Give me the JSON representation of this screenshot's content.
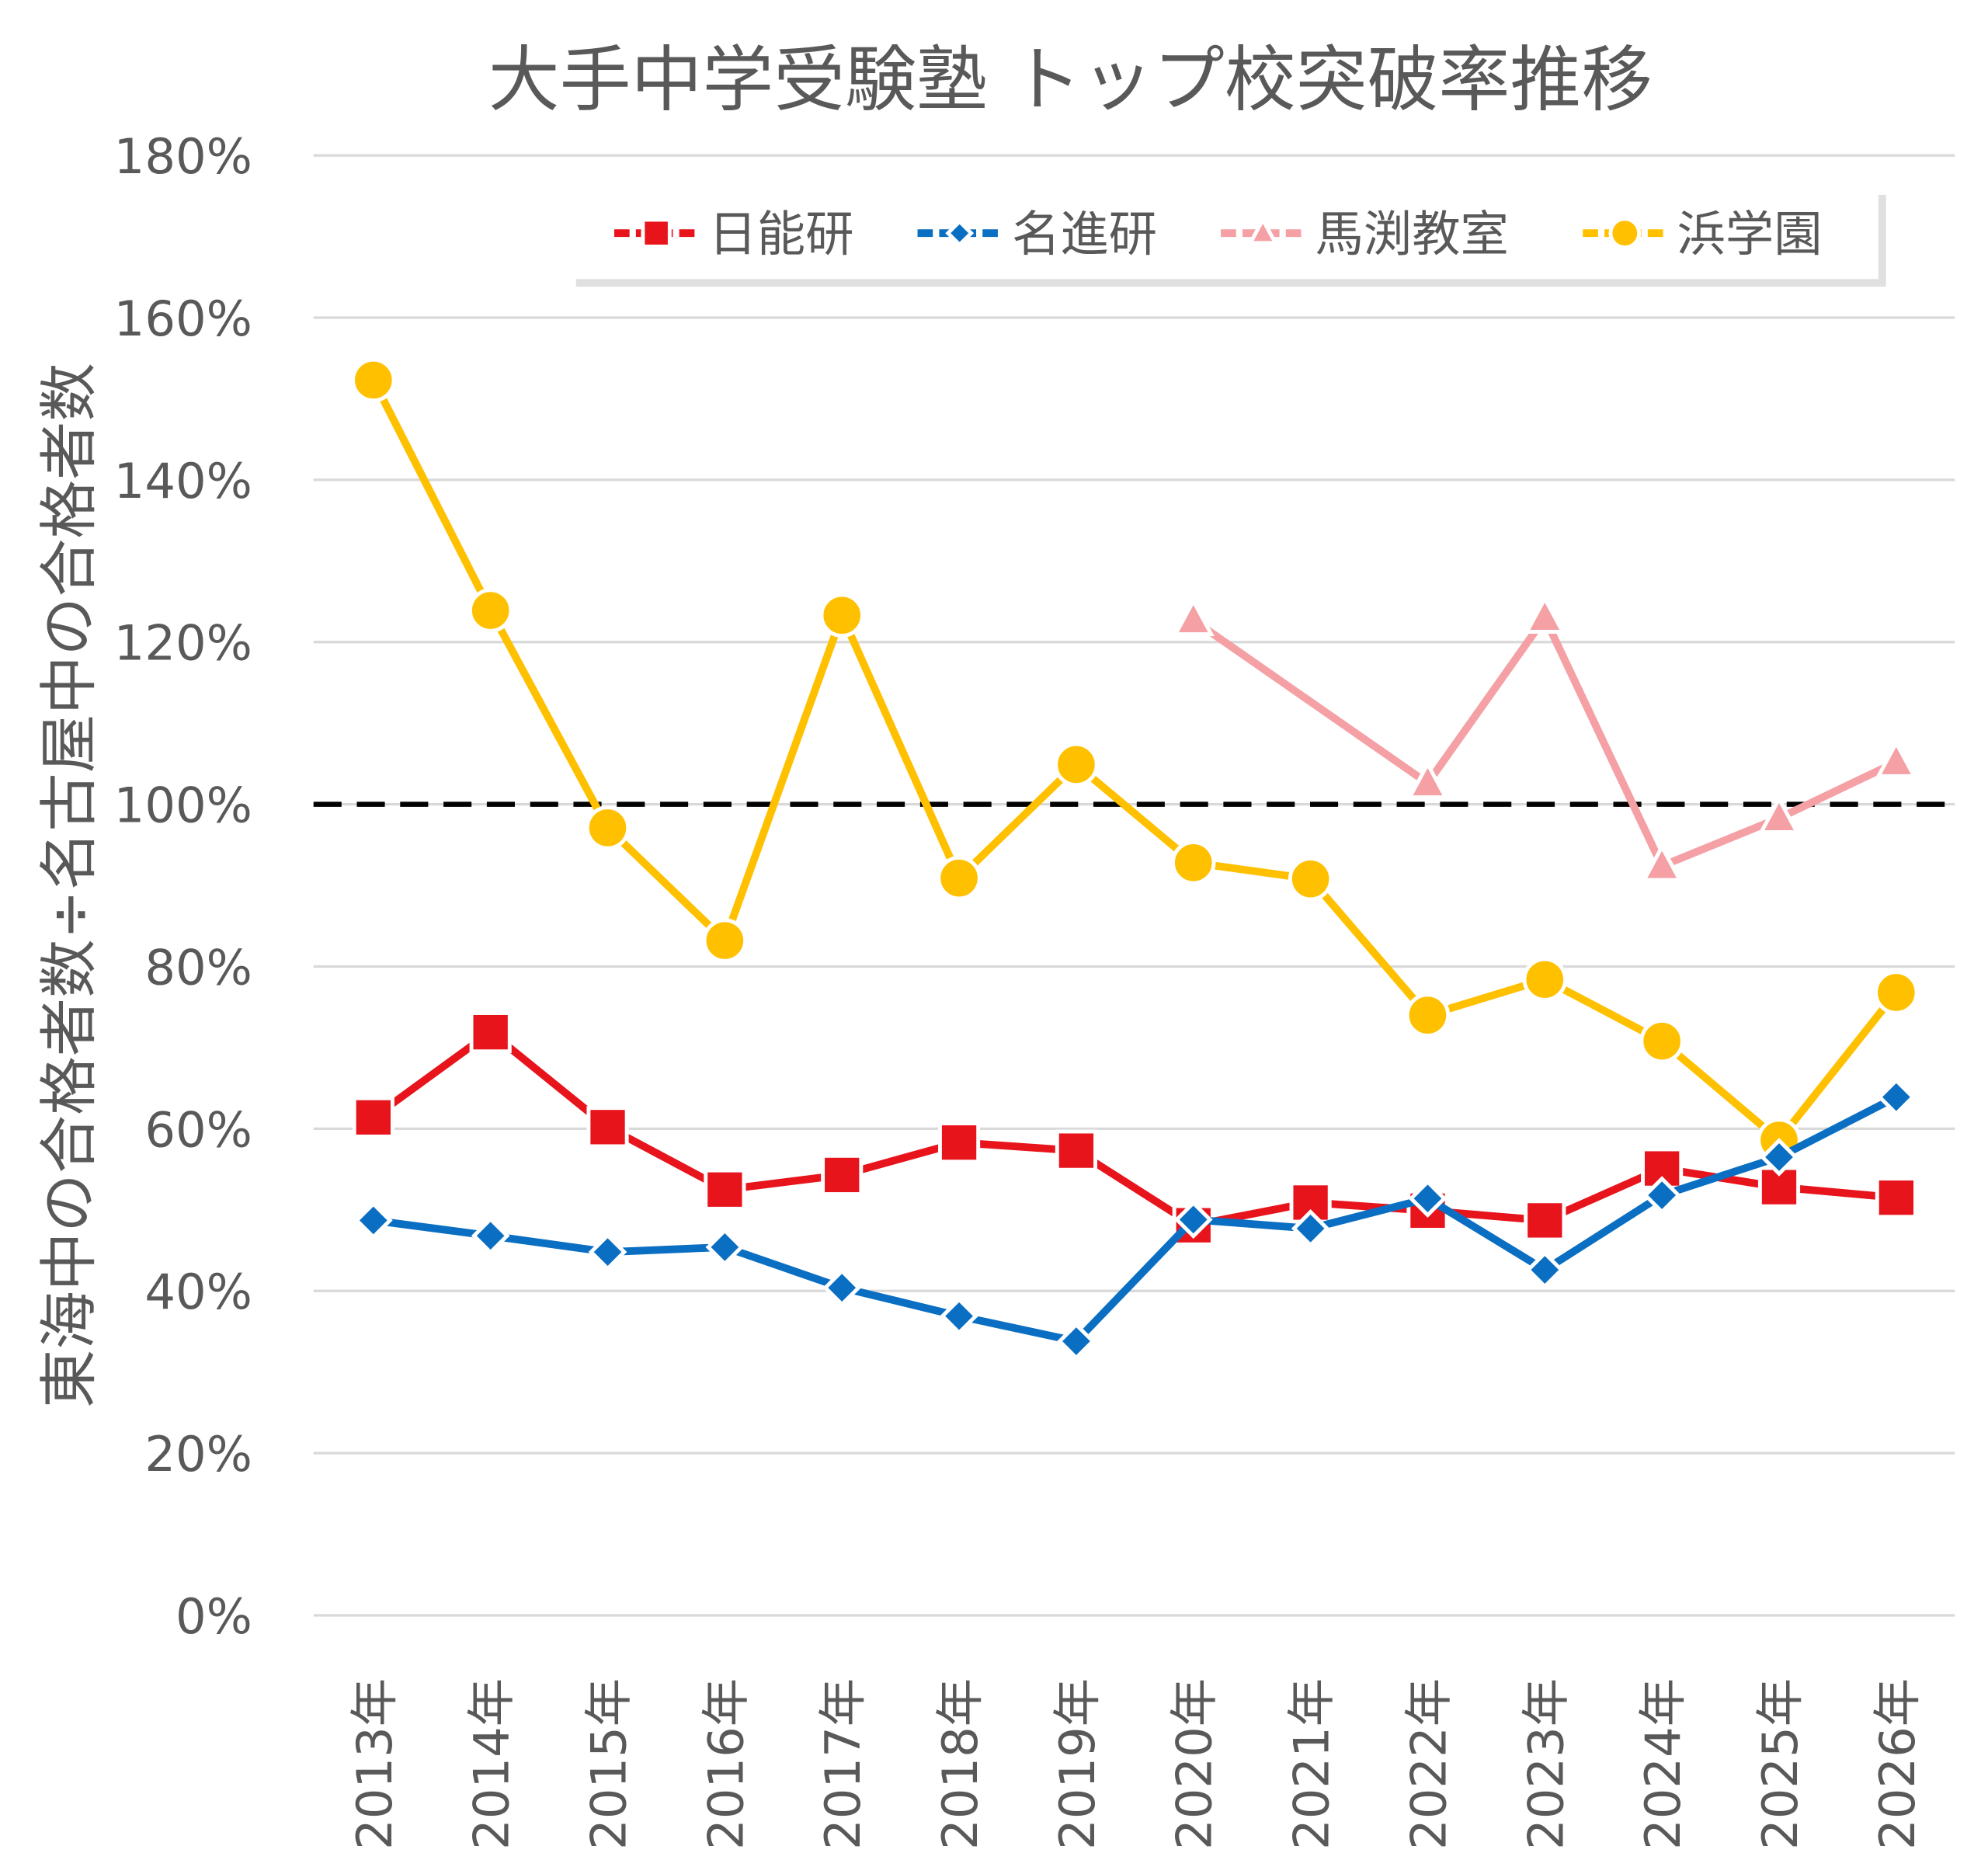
{
  "chart_data": {
    "type": "line",
    "title": "大手中学受験塾 トップ校突破率推移",
    "xlabel": "",
    "ylabel": "東海中の合格者数÷名古屋中の合格者数",
    "ylim": [
      0,
      180
    ],
    "yticks": [
      0,
      20,
      40,
      60,
      80,
      100,
      120,
      140,
      160,
      180
    ],
    "ytick_labels": [
      "0%",
      "20%",
      "40%",
      "60%",
      "80%",
      "100%",
      "120%",
      "140%",
      "160%",
      "180%"
    ],
    "grid": true,
    "legend_position": "top-right",
    "reference_line": {
      "value": 100,
      "style": "dashed",
      "color": "#000000"
    },
    "categories": [
      "2013年",
      "2014年",
      "2015年",
      "2016年",
      "2017年",
      "2018年",
      "2019年",
      "2020年",
      "2021年",
      "2022年",
      "2023年",
      "2024年",
      "2025年",
      "2026年"
    ],
    "series": [
      {
        "name": "日能研",
        "marker": "square",
        "color": "#E8141C",
        "values": [
          61.4,
          71.9,
          60.2,
          52.5,
          54.3,
          58.3,
          57.3,
          48.1,
          50.9,
          49.9,
          48.7,
          55.1,
          52.8,
          51.5
        ]
      },
      {
        "name": "名進研",
        "marker": "diamond",
        "color": "#0A6FC2",
        "values": [
          48.7,
          46.8,
          44.8,
          45.4,
          40.4,
          36.9,
          33.8,
          48.8,
          47.7,
          51.4,
          42.6,
          51.8,
          56.5,
          63.9
        ]
      },
      {
        "name": "馬渕教室",
        "marker": "triangle",
        "color": "#F4A0A4",
        "values": [
          null,
          null,
          null,
          null,
          null,
          null,
          null,
          122.7,
          null,
          102.6,
          123.0,
          92.4,
          98.3,
          105.2
        ]
      },
      {
        "name": "浜学園",
        "marker": "circle",
        "color": "#FFC000",
        "values": [
          152.3,
          123.9,
          97.1,
          83.2,
          123.3,
          90.9,
          104.9,
          92.8,
          90.8,
          74.0,
          78.4,
          70.8,
          58.6,
          76.8
        ]
      }
    ]
  }
}
